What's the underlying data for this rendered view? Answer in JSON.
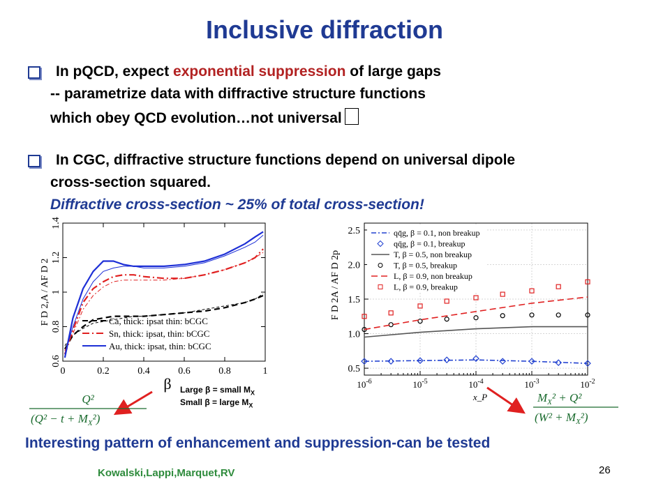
{
  "title": "Inclusive diffraction",
  "bullet1": {
    "pre": "In pQCD, expect ",
    "highlight": "exponential suppression",
    "post": " of large gaps",
    "line2": "-- parametrize data with diffractive structure functions",
    "line3": "which obey QCD evolution…not universal"
  },
  "bullet2": {
    "line1": "In CGC, diffractive structure functions depend on universal dipole",
    "line2": "cross-section squared.",
    "line3": "Diffractive cross-section ~ 25% of total cross-section!"
  },
  "notes": {
    "large_pre": "Large ",
    "large_mid": " = small M",
    "sub": "X",
    "small_pre": "Small ",
    "small_mid": " = large M",
    "beta": "β"
  },
  "formula_left": {
    "num": "Q²",
    "den": "(Q² − t + M",
    "sub": "X",
    "den_end": "²)"
  },
  "formula_right": {
    "num": "M",
    "num_end": "² + Q²",
    "den": "(W² + M",
    "sub": "X",
    "den_end": "²)"
  },
  "bottom_text": "Interesting pattern of enhancement and suppression-can be tested",
  "credit": "Kowalski,Lappi,Marquet,RV",
  "page_number": "26",
  "chart_data": [
    {
      "type": "line",
      "xlabel": "β",
      "ylabel": "F D 2,A / AF D 2",
      "xlim": [
        0,
        1
      ],
      "ylim": [
        0.6,
        1.4
      ],
      "xticks": [
        "0",
        "0.2",
        "0.4",
        "0.6",
        "0.8",
        "1"
      ],
      "yticks": [
        "0.6",
        "0.8",
        "1",
        "1.2",
        "1.4"
      ],
      "legend_position": "bottom-right",
      "legend": [
        "Ca, thick: ipsat thin: bCGC",
        "Sn, thick: ipsat, thin: bCGC",
        "Au, thick: ipsat, thin: bCGC"
      ],
      "x": [
        0.01,
        0.05,
        0.1,
        0.15,
        0.2,
        0.25,
        0.3,
        0.35,
        0.4,
        0.5,
        0.6,
        0.7,
        0.8,
        0.9,
        0.95,
        0.99
      ],
      "series": [
        {
          "name": "Ca, thick: ipsat thin: bCGC",
          "color": "#000000",
          "dash": "8,5",
          "width": 2.2,
          "values": [
            0.67,
            0.75,
            0.8,
            0.84,
            0.85,
            0.86,
            0.86,
            0.86,
            0.86,
            0.87,
            0.88,
            0.89,
            0.91,
            0.94,
            0.96,
            0.98
          ]
        },
        {
          "name": "Ca thin",
          "color": "#000000",
          "dash": "4,3",
          "width": 1.0,
          "values": [
            0.69,
            0.75,
            0.79,
            0.82,
            0.83,
            0.84,
            0.85,
            0.86,
            0.86,
            0.87,
            0.88,
            0.9,
            0.92,
            0.94,
            0.96,
            0.99
          ]
        },
        {
          "name": "Sn, thick: ipsat, thin: bCGC",
          "color": "#e02020",
          "dash": "10,4,2,4",
          "width": 2.2,
          "values": [
            0.64,
            0.78,
            0.94,
            1.02,
            1.06,
            1.09,
            1.1,
            1.1,
            1.09,
            1.08,
            1.08,
            1.1,
            1.13,
            1.17,
            1.2,
            1.25
          ]
        },
        {
          "name": "Sn thin",
          "color": "#e02020",
          "dash": "6,3,2,3",
          "width": 1.0,
          "values": [
            0.66,
            0.76,
            0.9,
            0.98,
            1.03,
            1.06,
            1.07,
            1.07,
            1.07,
            1.07,
            1.08,
            1.1,
            1.13,
            1.17,
            1.2,
            1.23
          ]
        },
        {
          "name": "Au, thick: ipsat, thin: bCGC",
          "color": "#1d2fd6",
          "dash": "",
          "width": 2.2,
          "values": [
            0.62,
            0.85,
            1.02,
            1.12,
            1.18,
            1.18,
            1.16,
            1.15,
            1.15,
            1.15,
            1.16,
            1.18,
            1.22,
            1.28,
            1.32,
            1.35
          ]
        },
        {
          "name": "Au thin",
          "color": "#1d2fd6",
          "dash": "",
          "width": 1.0,
          "values": [
            0.64,
            0.8,
            0.96,
            1.06,
            1.12,
            1.14,
            1.15,
            1.15,
            1.14,
            1.14,
            1.15,
            1.17,
            1.21,
            1.26,
            1.29,
            1.33
          ]
        }
      ]
    },
    {
      "type": "line",
      "xlabel": "x_P",
      "ylabel": "F D 2A / AF D 2p",
      "xscale": "log",
      "xlim": [
        1e-06,
        0.01
      ],
      "ylim": [
        0.4,
        2.6
      ],
      "xticks": [
        "10^-6",
        "10^-5",
        "10^-4",
        "10^-3",
        "10^-2"
      ],
      "yticks": [
        "0.5",
        "1.0",
        "1.5",
        "2.0",
        "2.5"
      ],
      "legend_position": "top-left",
      "legend": [
        "qq̄g, β = 0.1, non breakup",
        "qq̄g, β = 0.1, breakup",
        "T, β = 0.5, non breakup",
        "T, β = 0.5, breakup",
        "L, β = 0.9, non breakup",
        "L, β = 0.9, breakup"
      ],
      "series": [
        {
          "name": "qq̄g, β = 0.1, non breakup",
          "kind": "line",
          "color": "#2040d0",
          "dash": "7,3,2,3",
          "x": [
            1e-06,
            1e-05,
            0.0001,
            0.001,
            0.01
          ],
          "values": [
            0.6,
            0.61,
            0.62,
            0.6,
            0.57
          ]
        },
        {
          "name": "qq̄g, β = 0.1, breakup",
          "kind": "points",
          "marker": "diamond",
          "color": "#2040d0",
          "x": [
            1e-06,
            3e-06,
            1e-05,
            3e-05,
            0.0001,
            0.0003,
            0.001,
            0.003,
            0.01
          ],
          "values": [
            0.6,
            0.6,
            0.61,
            0.62,
            0.64,
            0.6,
            0.6,
            0.58,
            0.57
          ]
        },
        {
          "name": "T, β = 0.5, non breakup",
          "kind": "line",
          "color": "#555555",
          "dash": "",
          "x": [
            1e-06,
            1e-05,
            0.0001,
            0.001,
            0.01
          ],
          "values": [
            0.95,
            1.02,
            1.07,
            1.1,
            1.1
          ]
        },
        {
          "name": "T, β = 0.5, breakup",
          "kind": "points",
          "marker": "circle",
          "color": "#000000",
          "x": [
            1e-06,
            3e-06,
            1e-05,
            3e-05,
            0.0001,
            0.0003,
            0.001,
            0.003,
            0.01
          ],
          "values": [
            1.06,
            1.13,
            1.18,
            1.21,
            1.23,
            1.26,
            1.27,
            1.27,
            1.27
          ]
        },
        {
          "name": "L, β = 0.9, non breakup",
          "kind": "line",
          "color": "#e02020",
          "dash": "9,5",
          "x": [
            1e-06,
            1e-05,
            0.0001,
            0.001,
            0.01
          ],
          "values": [
            1.06,
            1.2,
            1.32,
            1.44,
            1.53
          ]
        },
        {
          "name": "L, β = 0.9, breakup",
          "kind": "points",
          "marker": "square",
          "color": "#e02020",
          "x": [
            1e-06,
            3e-06,
            1e-05,
            3e-05,
            0.0001,
            0.0003,
            0.001,
            0.003,
            0.01
          ],
          "values": [
            1.25,
            1.3,
            1.4,
            1.47,
            1.52,
            1.57,
            1.62,
            1.68,
            1.75
          ]
        }
      ]
    }
  ]
}
